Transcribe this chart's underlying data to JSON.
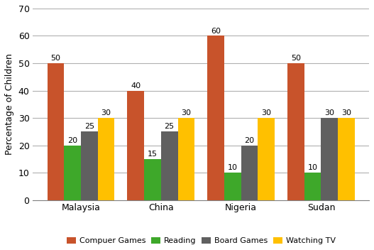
{
  "categories": [
    "Malaysia",
    "China",
    "Nigeria",
    "Sudan"
  ],
  "series": [
    {
      "label": "Compuer Games",
      "color": "#C8532B",
      "values": [
        50,
        40,
        60,
        50
      ]
    },
    {
      "label": "Reading",
      "color": "#3EA82A",
      "values": [
        20,
        15,
        10,
        10
      ]
    },
    {
      "label": "Board Games",
      "color": "#606060",
      "values": [
        25,
        25,
        20,
        30
      ]
    },
    {
      "label": "Watching TV",
      "color": "#FFC000",
      "values": [
        30,
        30,
        30,
        30
      ]
    }
  ],
  "ylabel": "Percentage of Children",
  "ylim": [
    0,
    70
  ],
  "yticks": [
    0,
    10,
    20,
    30,
    40,
    50,
    60,
    70
  ],
  "bar_width": 0.21,
  "background_color": "#ffffff",
  "grid_color": "#b0b0b0",
  "label_fontsize": 8,
  "axis_fontsize": 9,
  "tick_fontsize": 9,
  "legend_ncol": 4
}
